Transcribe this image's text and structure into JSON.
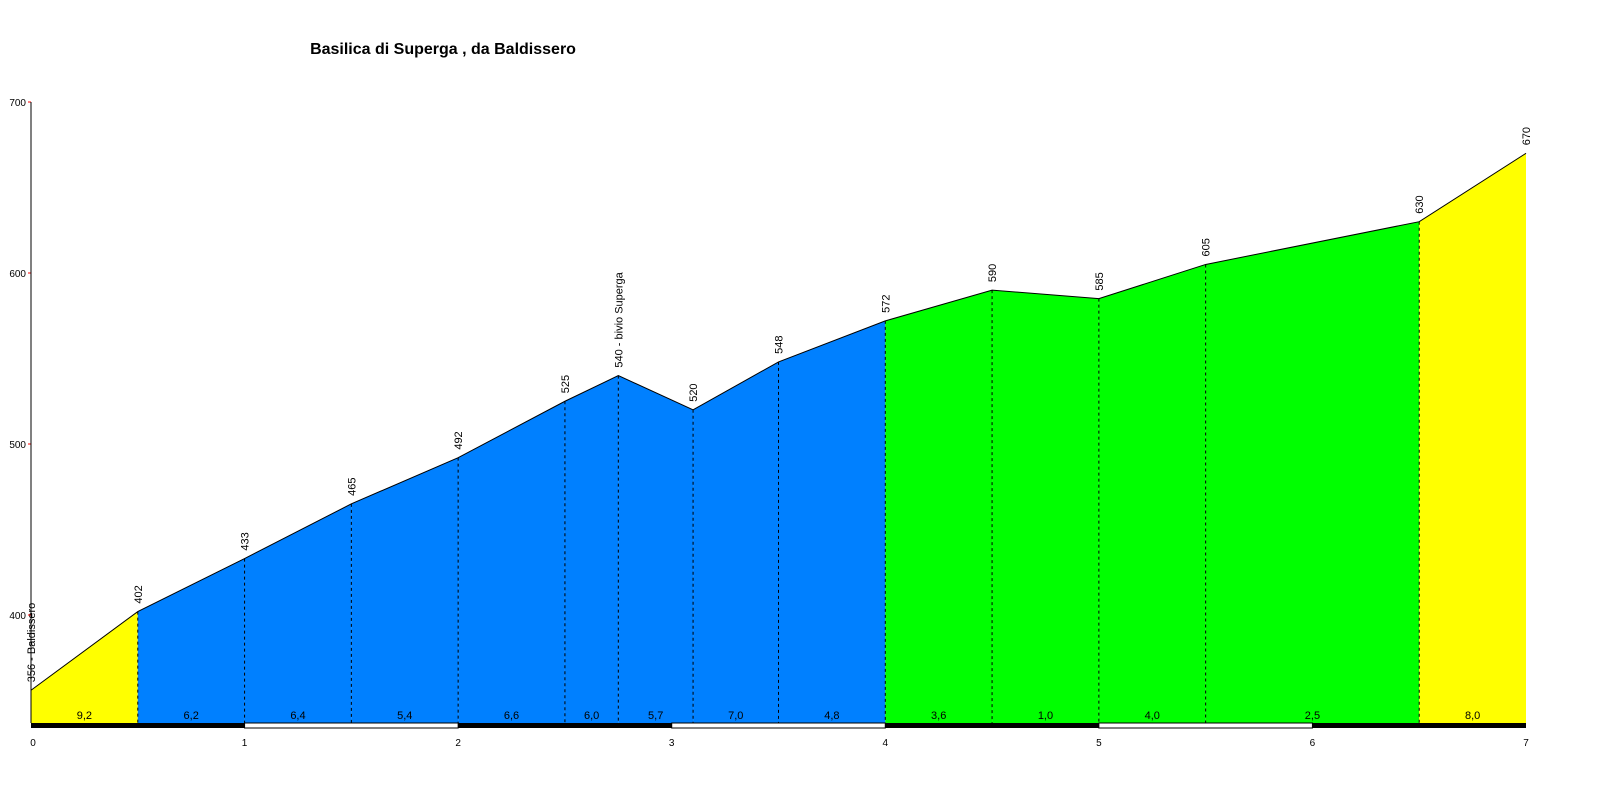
{
  "chart_data": {
    "type": "area",
    "title": "Basilica di Superga , da Baldissero",
    "xlabel": "",
    "ylabel": "",
    "xlim": [
      0,
      7
    ],
    "ylim": [
      337,
      700
    ],
    "x_ticks": [
      "0",
      "1",
      "2",
      "3",
      "4",
      "5",
      "6",
      "7"
    ],
    "y_ticks": [
      "400",
      "500",
      "600",
      "700"
    ],
    "points": [
      {
        "x": 0,
        "elev": 356,
        "label": "356 - Baldissero"
      },
      {
        "x": 0.5,
        "elev": 402,
        "label": "402"
      },
      {
        "x": 1.0,
        "elev": 433,
        "label": "433"
      },
      {
        "x": 1.5,
        "elev": 465,
        "label": "465"
      },
      {
        "x": 2.0,
        "elev": 492,
        "label": "492"
      },
      {
        "x": 2.5,
        "elev": 525,
        "label": "525"
      },
      {
        "x": 2.75,
        "elev": 540,
        "label": "540 - bivio Superga"
      },
      {
        "x": 3.1,
        "elev": 520,
        "label": "520"
      },
      {
        "x": 3.5,
        "elev": 548,
        "label": "548"
      },
      {
        "x": 4.0,
        "elev": 572,
        "label": "572"
      },
      {
        "x": 4.5,
        "elev": 590,
        "label": "590"
      },
      {
        "x": 5.0,
        "elev": 585,
        "label": "585"
      },
      {
        "x": 5.5,
        "elev": 605,
        "label": "605"
      },
      {
        "x": 6.5,
        "elev": 630,
        "label": "630"
      },
      {
        "x": 7.0,
        "elev": 670,
        "label": "670"
      }
    ],
    "segments": [
      {
        "gradient": "9,2",
        "color": "#ffff00"
      },
      {
        "gradient": "6,2",
        "color": "#0080ff"
      },
      {
        "gradient": "6,4",
        "color": "#0080ff"
      },
      {
        "gradient": "5,4",
        "color": "#0080ff"
      },
      {
        "gradient": "6,6",
        "color": "#0080ff"
      },
      {
        "gradient": "6,0",
        "color": "#0080ff"
      },
      {
        "gradient": "5,7",
        "color": "#0080ff"
      },
      {
        "gradient": "7,0",
        "color": "#0080ff"
      },
      {
        "gradient": "4,8",
        "color": "#0080ff"
      },
      {
        "gradient": "3,6",
        "color": "#00ff00"
      },
      {
        "gradient": "1,0",
        "color": "#00ff00"
      },
      {
        "gradient": "4,0",
        "color": "#00ff00"
      },
      {
        "gradient": "2,5",
        "color": "#00ff00"
      },
      {
        "gradient": "8,0",
        "color": "#ffff00"
      }
    ]
  }
}
